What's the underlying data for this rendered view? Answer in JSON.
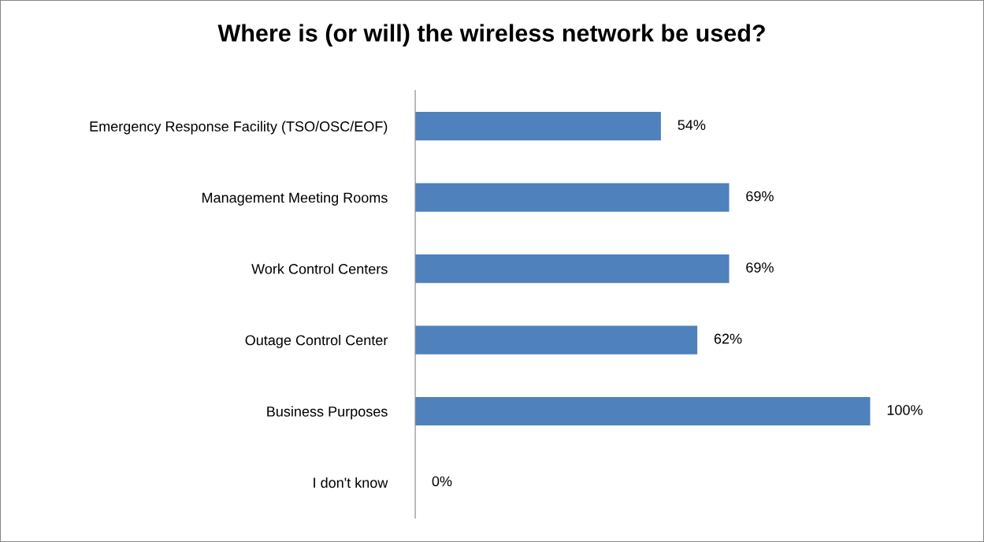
{
  "chart_data": {
    "type": "bar",
    "orientation": "horizontal",
    "title": "Where is (or will) the wireless network be used?",
    "categories": [
      "Emergency Response Facility (TSO/OSC/EOF)",
      "Management Meeting Rooms",
      "Work Control Centers",
      "Outage Control Center",
      "Business Purposes",
      "I don't know"
    ],
    "values": [
      54,
      69,
      69,
      62,
      100,
      0
    ],
    "value_labels": [
      "54%",
      "69%",
      "69%",
      "62%",
      "100%",
      "0%"
    ],
    "color": "#4f81bd",
    "grid": false,
    "legend": false,
    "tick_labels": "y"
  }
}
